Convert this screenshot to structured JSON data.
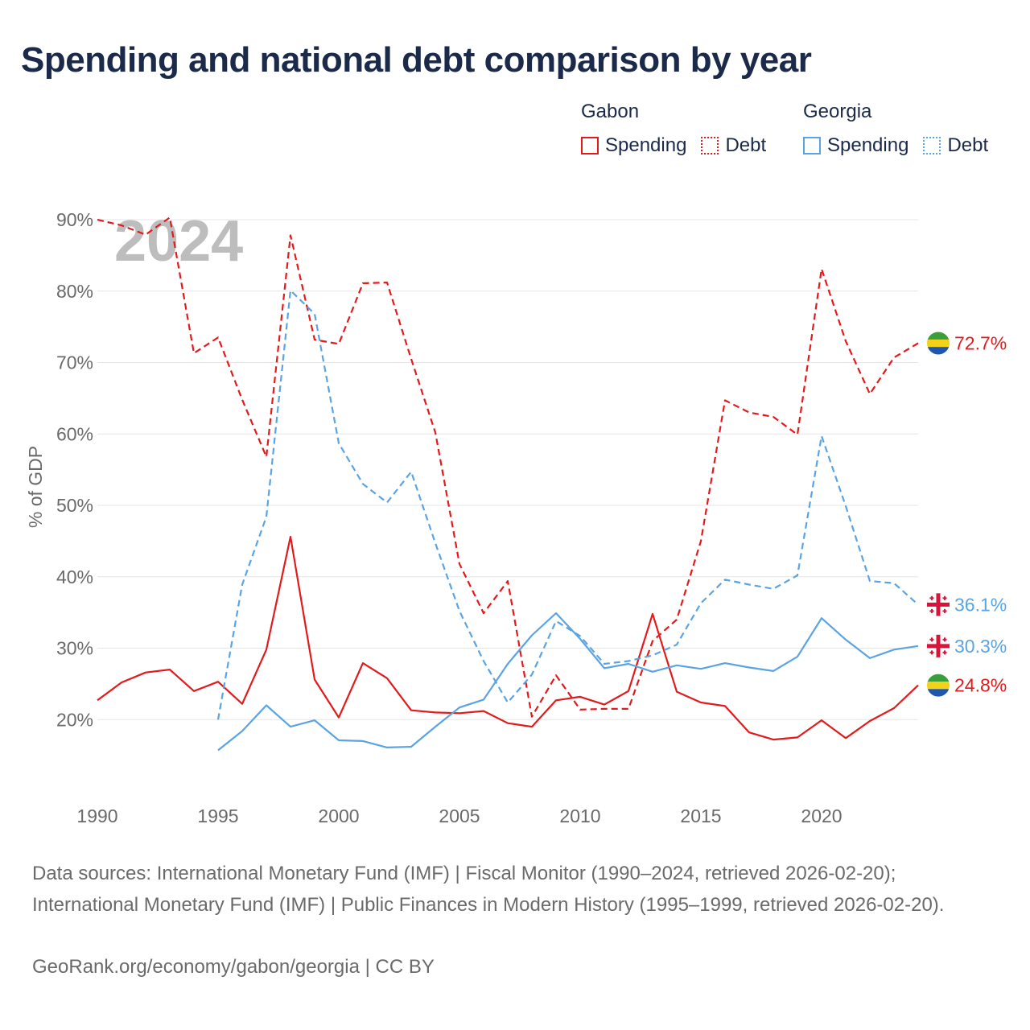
{
  "title": "Spending and national debt comparison by year",
  "year_label": "2024",
  "legend": {
    "groups": [
      {
        "name": "Gabon",
        "color": "#e31a1c",
        "items": [
          "Spending",
          "Debt"
        ]
      },
      {
        "name": "Georgia",
        "color": "#5aa4e3",
        "items": [
          "Spending",
          "Debt"
        ]
      }
    ]
  },
  "source": {
    "text": "Data sources: International Monetary Fund (IMF) | Fiscal Monitor (1990–2024, retrieved 2026-02-20); International Monetary Fund (IMF) | Public Finances in Modern History (1995–1999, retrieved 2026-02-20).",
    "credit": "GeoRank.org/economy/gabon/georgia | CC BY"
  },
  "chart_data": {
    "type": "line",
    "ylabel": "% of GDP",
    "xlabel": "",
    "xlim": [
      1990,
      2024
    ],
    "ylim": [
      10,
      90
    ],
    "xticks": [
      1990,
      1995,
      2000,
      2005,
      2010,
      2015,
      2020
    ],
    "xtick_labels": [
      "1990",
      "1995",
      "2000",
      "2005",
      "2010",
      "2015",
      "2020"
    ],
    "yticks": [
      20,
      30,
      40,
      50,
      60,
      70,
      80,
      90
    ],
    "ytick_labels": [
      "20%",
      "30%",
      "40%",
      "50%",
      "60%",
      "70%",
      "80%",
      "90%"
    ],
    "grid": true,
    "series": [
      {
        "name": "Gabon Debt",
        "country": "Gabon",
        "measure": "Debt",
        "style": "dashed",
        "color": "#e31a1c",
        "end_label": "72.7%",
        "x": [
          1990,
          1991,
          1992,
          1993,
          1994,
          1995,
          1996,
          1997,
          1998,
          1999,
          2000,
          2001,
          2002,
          2003,
          2004,
          2005,
          2006,
          2007,
          2008,
          2009,
          2010,
          2011,
          2012,
          2013,
          2014,
          2015,
          2016,
          2017,
          2018,
          2019,
          2020,
          2021,
          2022,
          2023,
          2024
        ],
        "values": [
          90.0,
          89.2,
          87.9,
          90.3,
          71.3,
          73.5,
          64.8,
          56.8,
          87.8,
          73.2,
          72.6,
          81.1,
          81.2,
          70.5,
          60.2,
          41.8,
          34.9,
          39.4,
          20.4,
          26.2,
          21.4,
          21.5,
          21.5,
          31.0,
          34.0,
          45.0,
          64.7,
          63.0,
          62.4,
          59.9,
          83.1,
          73.0,
          65.6,
          70.7,
          72.7
        ]
      },
      {
        "name": "Gabon Spending",
        "country": "Gabon",
        "measure": "Spending",
        "style": "solid",
        "color": "#e31a1c",
        "end_label": "24.8%",
        "x": [
          1990,
          1991,
          1992,
          1993,
          1994,
          1995,
          1996,
          1997,
          1998,
          1999,
          2000,
          2001,
          2002,
          2003,
          2004,
          2005,
          2006,
          2007,
          2008,
          2009,
          2010,
          2011,
          2012,
          2013,
          2014,
          2015,
          2016,
          2017,
          2018,
          2019,
          2020,
          2021,
          2022,
          2023,
          2024
        ],
        "values": [
          22.7,
          25.2,
          26.6,
          27.0,
          24.0,
          25.3,
          22.2,
          29.8,
          45.6,
          25.6,
          20.3,
          27.9,
          25.8,
          21.3,
          21.0,
          20.9,
          21.2,
          19.5,
          19.0,
          22.7,
          23.2,
          22.1,
          24.0,
          34.8,
          23.9,
          22.4,
          21.9,
          18.2,
          17.2,
          17.5,
          19.9,
          17.4,
          19.8,
          21.6,
          24.8
        ]
      },
      {
        "name": "Georgia Debt",
        "country": "Georgia",
        "measure": "Debt",
        "style": "dashed",
        "color": "#5aa4e3",
        "end_label": "36.1%",
        "x": [
          1995,
          1996,
          1997,
          1998,
          1999,
          2000,
          2001,
          2002,
          2003,
          2004,
          2005,
          2006,
          2007,
          2008,
          2009,
          2010,
          2011,
          2012,
          2013,
          2014,
          2015,
          2016,
          2017,
          2018,
          2019,
          2020,
          2021,
          2022,
          2023,
          2024
        ],
        "values": [
          20.0,
          38.9,
          48.4,
          80.1,
          76.8,
          58.7,
          53.0,
          50.4,
          54.7,
          44.7,
          35.2,
          28.2,
          22.4,
          26.3,
          33.8,
          31.7,
          27.8,
          28.2,
          29.0,
          30.5,
          36.3,
          39.6,
          38.9,
          38.3,
          40.2,
          59.7,
          49.9,
          39.4,
          39.1,
          36.1
        ]
      },
      {
        "name": "Georgia Spending",
        "country": "Georgia",
        "measure": "Spending",
        "style": "solid",
        "color": "#5aa4e3",
        "end_label": "30.3%",
        "x": [
          1995,
          1996,
          1997,
          1998,
          1999,
          2000,
          2001,
          2002,
          2003,
          2004,
          2005,
          2006,
          2007,
          2008,
          2009,
          2010,
          2011,
          2012,
          2013,
          2014,
          2015,
          2016,
          2017,
          2018,
          2019,
          2020,
          2021,
          2022,
          2023,
          2024
        ],
        "values": [
          15.7,
          18.4,
          22.0,
          19.0,
          19.9,
          17.1,
          17.0,
          16.1,
          16.2,
          19.0,
          21.7,
          22.8,
          27.8,
          31.8,
          34.9,
          31.3,
          27.2,
          27.8,
          26.7,
          27.6,
          27.1,
          27.9,
          27.3,
          26.8,
          28.8,
          34.2,
          31.2,
          28.6,
          29.8,
          30.3
        ]
      }
    ]
  }
}
